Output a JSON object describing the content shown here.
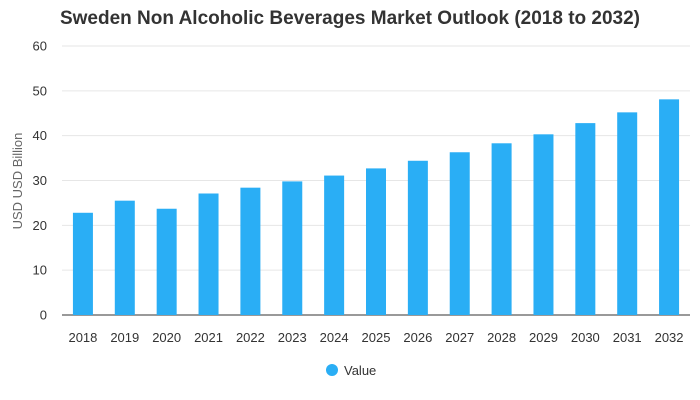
{
  "chart_data": {
    "type": "bar",
    "title": "Sweden Non Alcoholic Beverages Market Outlook (2018 to 2032)",
    "xlabel": "",
    "ylabel": "USD USD Billion",
    "ylim": [
      0,
      60
    ],
    "yticks": [
      0,
      10,
      20,
      30,
      40,
      50,
      60
    ],
    "grid": true,
    "legend_position": "bottom",
    "categories": [
      "2018",
      "2019",
      "2020",
      "2021",
      "2022",
      "2023",
      "2024",
      "2025",
      "2026",
      "2027",
      "2028",
      "2029",
      "2030",
      "2031",
      "2032"
    ],
    "series": [
      {
        "name": "Value",
        "color": "#2aaef5",
        "values": [
          22.8,
          25.5,
          23.7,
          27.1,
          28.4,
          29.8,
          31.1,
          32.7,
          34.4,
          36.3,
          38.3,
          40.3,
          42.8,
          45.2,
          48.1
        ]
      }
    ]
  }
}
